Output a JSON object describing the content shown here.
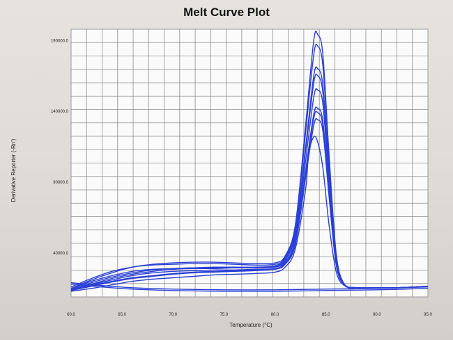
{
  "chart_data": {
    "type": "line",
    "title": "Melt Curve Plot",
    "xlabel": "Temperature (°C)",
    "ylabel": "Derivative Reporter (-Rn')",
    "xlim": [
      60.0,
      95.0
    ],
    "ylim": [
      9000,
      198000
    ],
    "grid": true,
    "xticks": [
      60.0,
      65.0,
      70.0,
      75.0,
      80.0,
      85.0,
      90.0,
      95.0
    ],
    "xtick_labels": [
      "60.0",
      "65.0",
      "70.0",
      "75.0",
      "80.0",
      "85.0",
      "90.0",
      "95.0"
    ],
    "yticks": [
      40000,
      90000,
      140000,
      190000
    ],
    "ytick_labels": [
      "40000.0",
      "90000.0",
      "140000.0",
      "190000.0"
    ],
    "line_color": "#2a3fd6",
    "series": [
      {
        "values": [
          [
            60,
            15000
          ],
          [
            62,
            21000
          ],
          [
            64,
            26000
          ],
          [
            66,
            30000
          ],
          [
            68,
            32000
          ],
          [
            70,
            33000
          ],
          [
            72,
            33500
          ],
          [
            74,
            33500
          ],
          [
            76,
            33000
          ],
          [
            78,
            32500
          ],
          [
            80,
            33000
          ],
          [
            81,
            38000
          ],
          [
            82,
            60000
          ],
          [
            83,
            130000
          ],
          [
            83.8,
            190000
          ],
          [
            84.2,
            194000
          ],
          [
            84.7,
            180000
          ],
          [
            85.3,
            110000
          ],
          [
            86,
            40000
          ],
          [
            86.8,
            18000
          ],
          [
            88,
            15500
          ],
          [
            90,
            15500
          ],
          [
            92,
            15500
          ],
          [
            95,
            16500
          ]
        ]
      },
      {
        "values": [
          [
            60,
            16000
          ],
          [
            62,
            22000
          ],
          [
            64,
            27000
          ],
          [
            66,
            30000
          ],
          [
            68,
            31500
          ],
          [
            70,
            32000
          ],
          [
            72,
            32500
          ],
          [
            74,
            32500
          ],
          [
            76,
            32000
          ],
          [
            78,
            31500
          ],
          [
            80,
            32000
          ],
          [
            81,
            37000
          ],
          [
            82,
            58000
          ],
          [
            83,
            125000
          ],
          [
            83.8,
            180000
          ],
          [
            84.2,
            186000
          ],
          [
            84.7,
            172000
          ],
          [
            85.3,
            105000
          ],
          [
            86,
            38000
          ],
          [
            86.8,
            18000
          ],
          [
            88,
            15500
          ],
          [
            90,
            15500
          ],
          [
            92,
            15500
          ],
          [
            95,
            16500
          ]
        ]
      },
      {
        "values": [
          [
            60,
            14500
          ],
          [
            62,
            19000
          ],
          [
            64,
            23000
          ],
          [
            66,
            26000
          ],
          [
            68,
            28000
          ],
          [
            70,
            29000
          ],
          [
            72,
            29500
          ],
          [
            74,
            30000
          ],
          [
            76,
            30000
          ],
          [
            78,
            30000
          ],
          [
            80,
            31000
          ],
          [
            81,
            36000
          ],
          [
            82,
            55000
          ],
          [
            83,
            115000
          ],
          [
            83.8,
            165000
          ],
          [
            84.2,
            170000
          ],
          [
            84.7,
            158000
          ],
          [
            85.3,
            98000
          ],
          [
            86,
            36000
          ],
          [
            86.8,
            18000
          ],
          [
            88,
            15500
          ],
          [
            90,
            15500
          ],
          [
            92,
            15500
          ],
          [
            95,
            16500
          ]
        ]
      },
      {
        "values": [
          [
            60,
            14000
          ],
          [
            62,
            18000
          ],
          [
            64,
            22000
          ],
          [
            66,
            25000
          ],
          [
            68,
            27000
          ],
          [
            70,
            28500
          ],
          [
            72,
            29000
          ],
          [
            74,
            29000
          ],
          [
            76,
            29500
          ],
          [
            78,
            29500
          ],
          [
            80,
            30500
          ],
          [
            81,
            35000
          ],
          [
            82,
            53000
          ],
          [
            83,
            112000
          ],
          [
            83.8,
            160000
          ],
          [
            84.2,
            165000
          ],
          [
            84.7,
            153000
          ],
          [
            85.3,
            95000
          ],
          [
            86,
            35000
          ],
          [
            86.8,
            18000
          ],
          [
            88,
            15500
          ],
          [
            90,
            15500
          ],
          [
            92,
            15500
          ],
          [
            95,
            16500
          ]
        ]
      },
      {
        "values": [
          [
            60,
            15000
          ],
          [
            62,
            20000
          ],
          [
            64,
            24000
          ],
          [
            66,
            27000
          ],
          [
            68,
            28500
          ],
          [
            70,
            29000
          ],
          [
            72,
            29500
          ],
          [
            74,
            29500
          ],
          [
            76,
            29500
          ],
          [
            78,
            29500
          ],
          [
            80,
            30000
          ],
          [
            81,
            34000
          ],
          [
            82,
            50000
          ],
          [
            83,
            105000
          ],
          [
            83.8,
            150000
          ],
          [
            84.2,
            155000
          ],
          [
            84.7,
            145000
          ],
          [
            85.3,
            90000
          ],
          [
            86,
            34000
          ],
          [
            86.8,
            18000
          ],
          [
            88,
            15500
          ],
          [
            90,
            15500
          ],
          [
            92,
            15500
          ],
          [
            95,
            16500
          ]
        ]
      },
      {
        "values": [
          [
            60,
            14000
          ],
          [
            62,
            17000
          ],
          [
            64,
            20000
          ],
          [
            66,
            22500
          ],
          [
            68,
            24000
          ],
          [
            70,
            25500
          ],
          [
            72,
            26500
          ],
          [
            74,
            27000
          ],
          [
            76,
            27500
          ],
          [
            78,
            28000
          ],
          [
            80,
            29000
          ],
          [
            81,
            33000
          ],
          [
            82,
            48000
          ],
          [
            83,
            98000
          ],
          [
            83.8,
            138000
          ],
          [
            84.2,
            142000
          ],
          [
            84.7,
            133000
          ],
          [
            85.3,
            84000
          ],
          [
            86,
            33000
          ],
          [
            86.8,
            17500
          ],
          [
            88,
            15500
          ],
          [
            90,
            15500
          ],
          [
            92,
            15500
          ],
          [
            95,
            16500
          ]
        ]
      },
      {
        "values": [
          [
            60,
            13500
          ],
          [
            62,
            16500
          ],
          [
            64,
            19500
          ],
          [
            66,
            22000
          ],
          [
            68,
            23500
          ],
          [
            70,
            25000
          ],
          [
            72,
            26000
          ],
          [
            74,
            26500
          ],
          [
            76,
            27000
          ],
          [
            78,
            27500
          ],
          [
            80,
            28500
          ],
          [
            81,
            32000
          ],
          [
            82,
            46000
          ],
          [
            83,
            93000
          ],
          [
            83.8,
            130000
          ],
          [
            84.2,
            134000
          ],
          [
            84.7,
            126000
          ],
          [
            85.3,
            80000
          ],
          [
            86,
            32000
          ],
          [
            86.8,
            17500
          ],
          [
            88,
            15500
          ],
          [
            90,
            15500
          ],
          [
            92,
            15500
          ],
          [
            95,
            16500
          ]
        ]
      },
      {
        "values": [
          [
            60,
            14000
          ],
          [
            62,
            17500
          ],
          [
            64,
            21000
          ],
          [
            66,
            24000
          ],
          [
            68,
            26000
          ],
          [
            70,
            27000
          ],
          [
            72,
            27500
          ],
          [
            74,
            28000
          ],
          [
            76,
            28000
          ],
          [
            78,
            28500
          ],
          [
            80,
            29000
          ],
          [
            81,
            33000
          ],
          [
            82,
            47000
          ],
          [
            83,
            95000
          ],
          [
            83.8,
            135000
          ],
          [
            84.2,
            139000
          ],
          [
            84.7,
            130000
          ],
          [
            85.3,
            82000
          ],
          [
            86,
            32000
          ],
          [
            86.8,
            17500
          ],
          [
            88,
            15500
          ],
          [
            90,
            15500
          ],
          [
            92,
            15500
          ],
          [
            95,
            16500
          ]
        ]
      },
      {
        "values": [
          [
            60,
            13000
          ],
          [
            62,
            15000
          ],
          [
            64,
            17500
          ],
          [
            66,
            20000
          ],
          [
            68,
            21500
          ],
          [
            70,
            22500
          ],
          [
            72,
            23500
          ],
          [
            74,
            24500
          ],
          [
            76,
            25000
          ],
          [
            78,
            25500
          ],
          [
            80,
            26500
          ],
          [
            81,
            30000
          ],
          [
            82,
            43000
          ],
          [
            83,
            85000
          ],
          [
            83.3,
            110000
          ],
          [
            83.8,
            122000
          ],
          [
            84.2,
            118000
          ],
          [
            84.7,
            100000
          ],
          [
            85.3,
            60000
          ],
          [
            86,
            27000
          ],
          [
            86.8,
            17000
          ],
          [
            88,
            15500
          ],
          [
            90,
            15500
          ],
          [
            92,
            15500
          ],
          [
            95,
            16500
          ]
        ]
      },
      {
        "values": [
          [
            60,
            19000
          ],
          [
            63,
            17000
          ],
          [
            66,
            15500
          ],
          [
            70,
            14500
          ],
          [
            75,
            14000
          ],
          [
            80,
            14000
          ],
          [
            85,
            14500
          ],
          [
            90,
            15000
          ],
          [
            95,
            16000
          ]
        ]
      },
      {
        "values": [
          [
            60,
            18000
          ],
          [
            63,
            16000
          ],
          [
            66,
            14500
          ],
          [
            70,
            13500
          ],
          [
            75,
            13000
          ],
          [
            80,
            13000
          ],
          [
            85,
            13500
          ],
          [
            90,
            14000
          ],
          [
            95,
            15000
          ]
        ]
      }
    ]
  }
}
